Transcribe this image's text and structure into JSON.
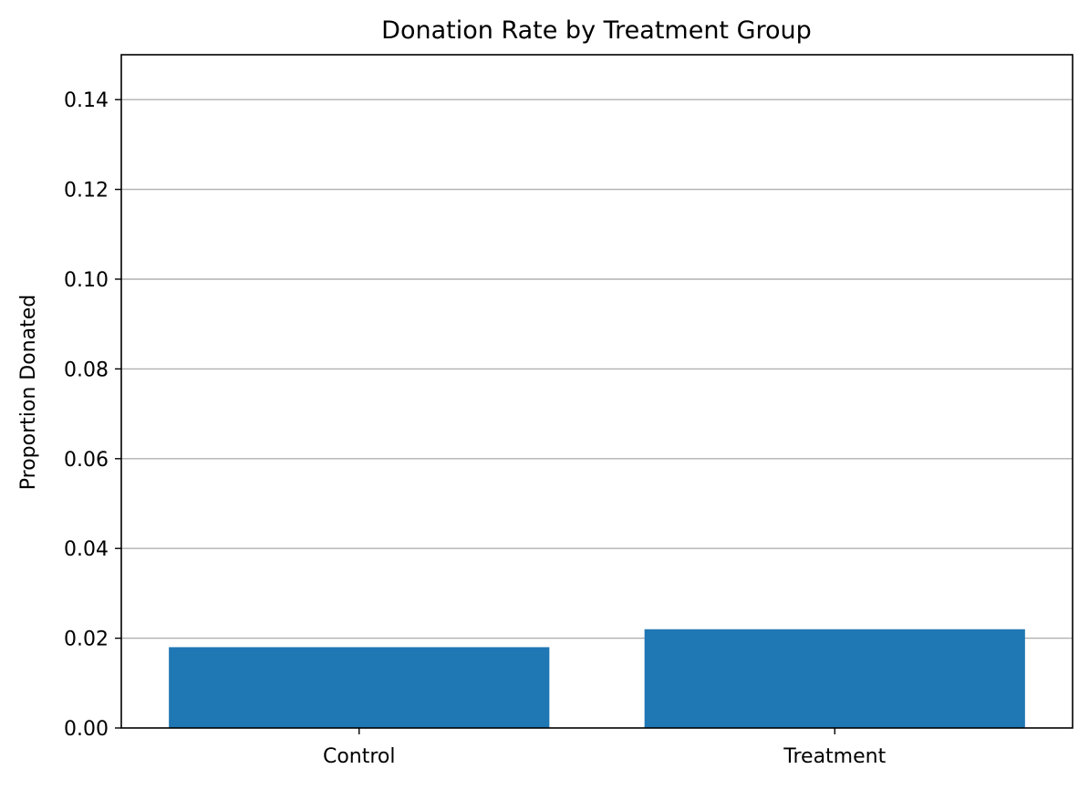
{
  "chart_data": {
    "type": "bar",
    "title": "Donation Rate by Treatment Group",
    "xlabel": "",
    "ylabel": "Proportion Donated",
    "categories": [
      "Control",
      "Treatment"
    ],
    "values": [
      0.018,
      0.022
    ],
    "ylim": [
      0,
      0.15
    ],
    "yticks": [
      0.0,
      0.02,
      0.04,
      0.06,
      0.08,
      0.1,
      0.12,
      0.14
    ],
    "ytick_labels": [
      "0.00",
      "0.02",
      "0.04",
      "0.06",
      "0.08",
      "0.10",
      "0.12",
      "0.14"
    ],
    "grid": "horizontal",
    "bar_color": "#1f77b4",
    "grid_color": "#b0b0b0"
  }
}
